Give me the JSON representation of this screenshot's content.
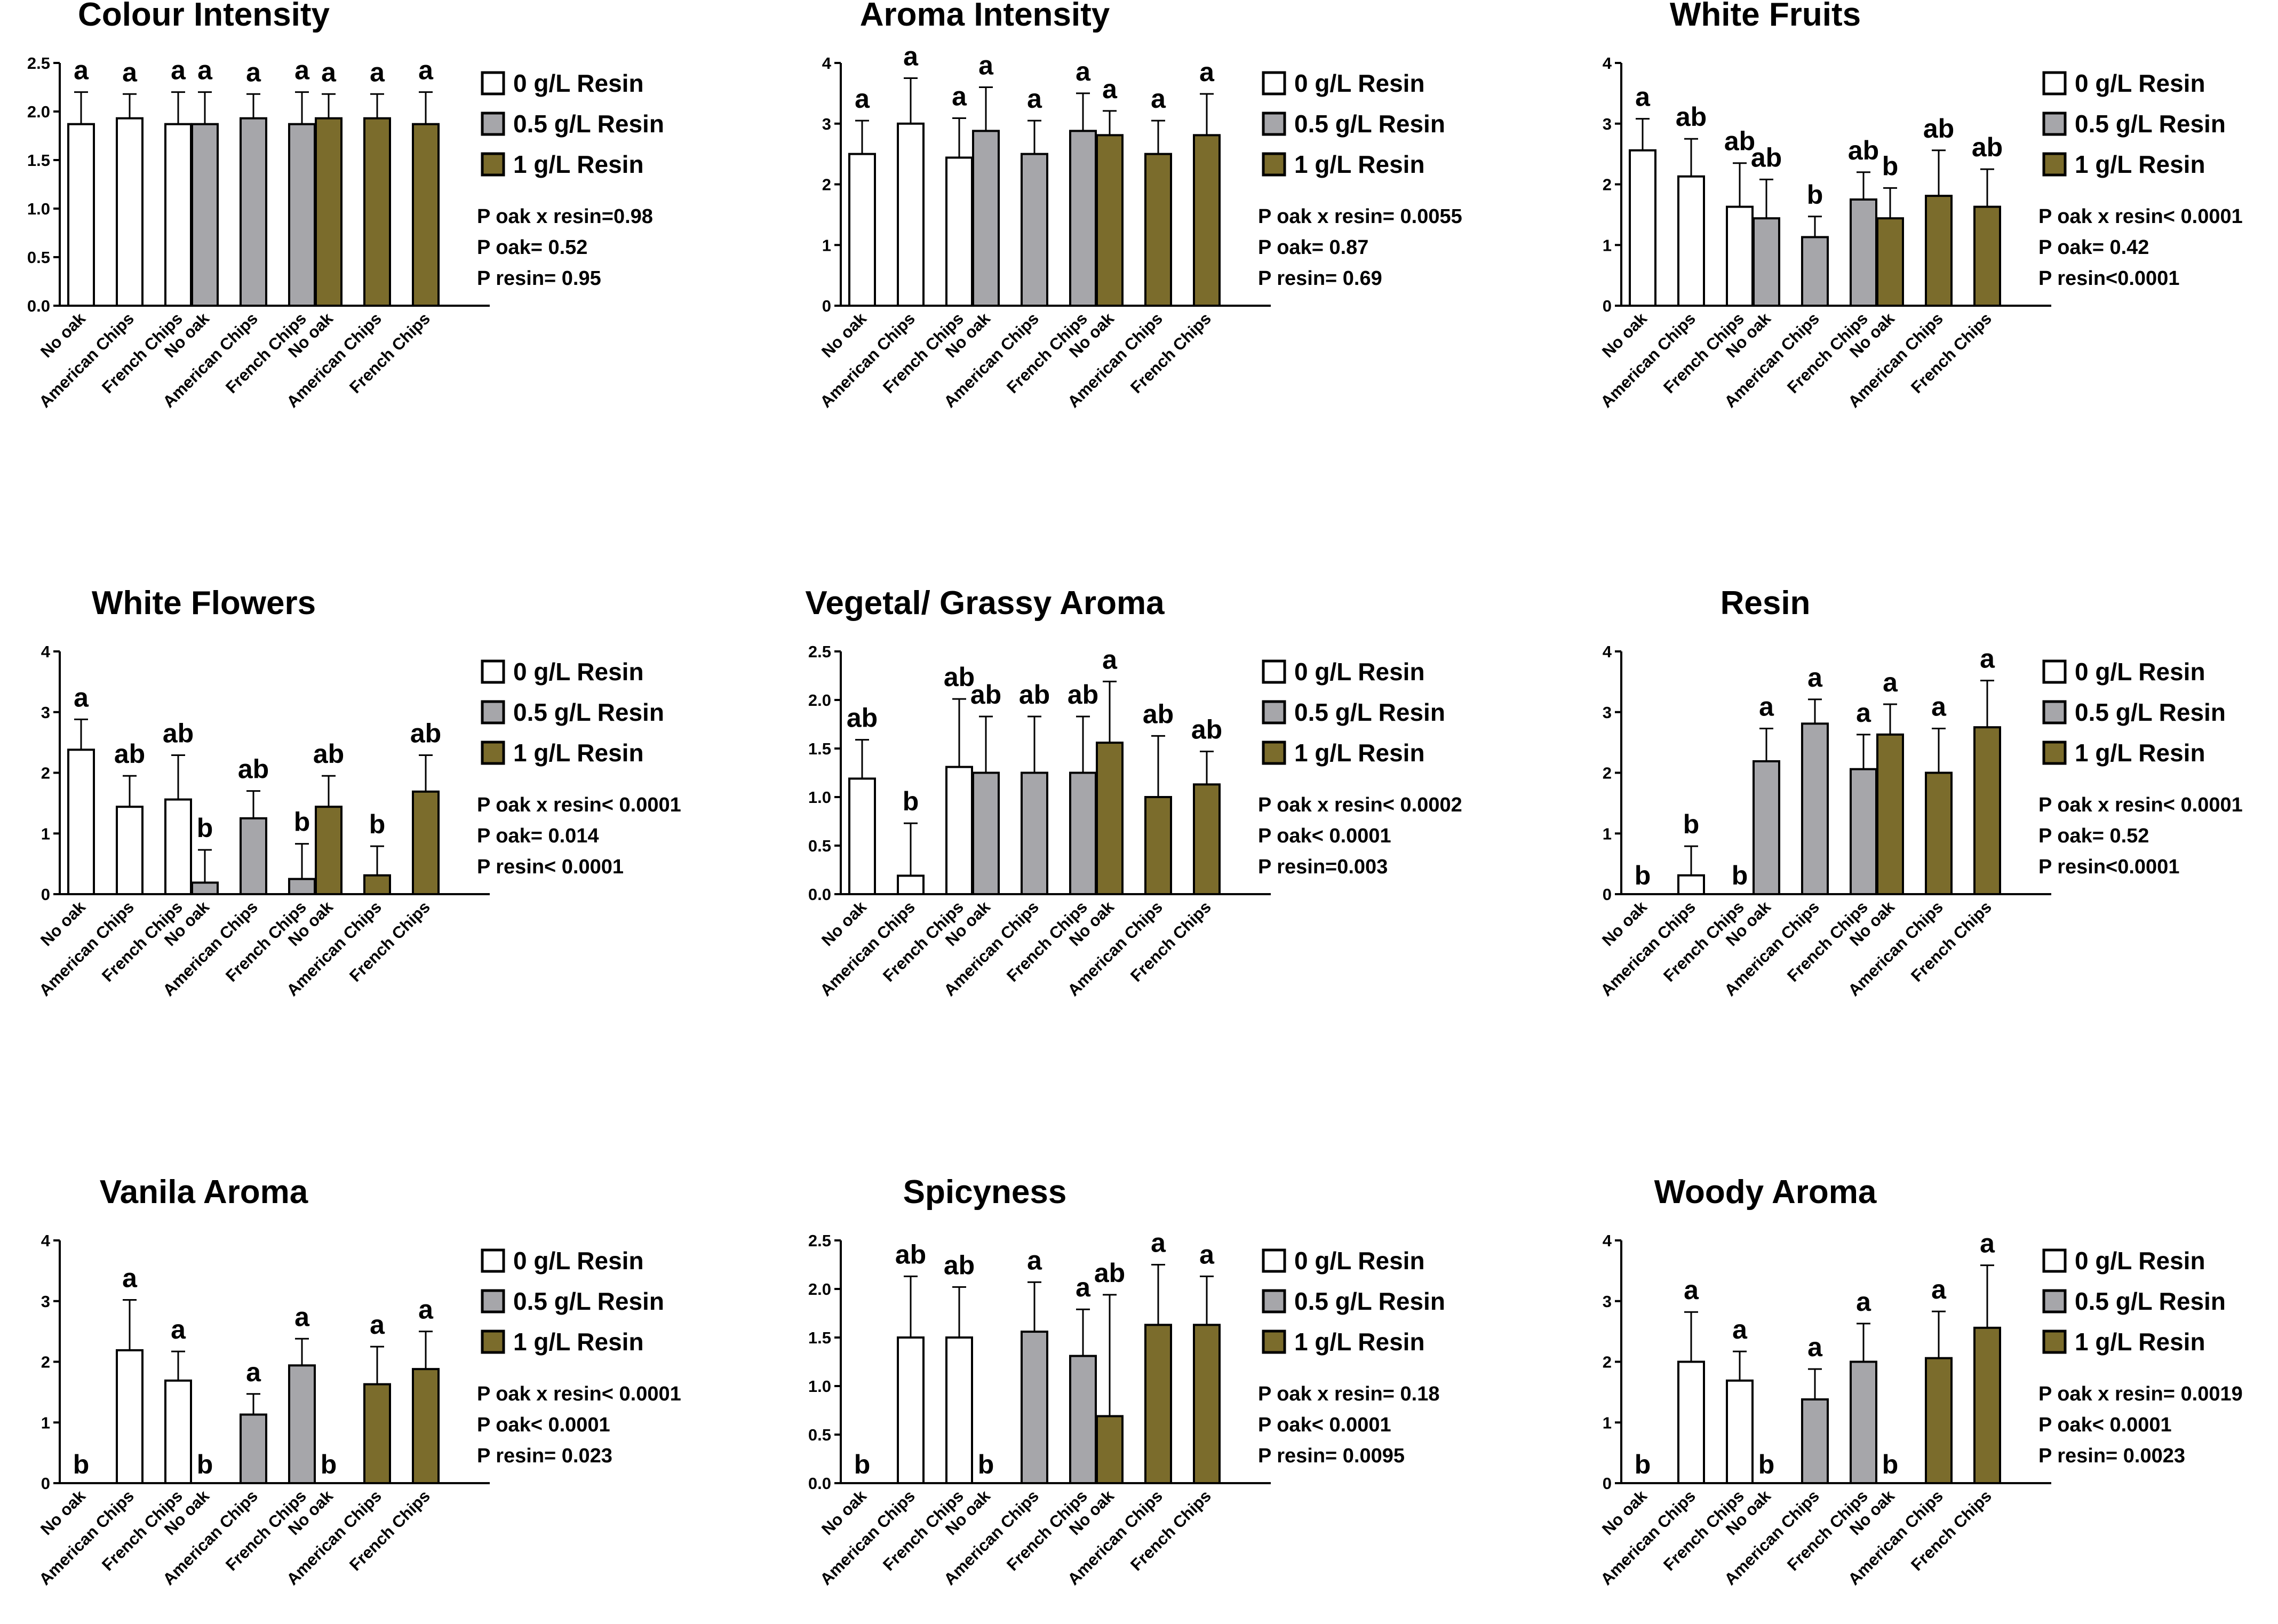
{
  "colors": {
    "resin_0": "#ffffff",
    "resin_05": "#a6a6aa",
    "resin_1": "#7b6c2c",
    "ink": "#000000"
  },
  "legend": [
    "0 g/L Resin",
    "0.5 g/L Resin",
    "1 g/L Resin"
  ],
  "oak_labels": [
    "No oak",
    "American Chips",
    "French Chips"
  ],
  "chart_data": [
    {
      "type": "bar",
      "title": "Colour Intensity",
      "ylim": [
        0,
        2.5
      ],
      "yticks": [
        "0.0",
        "0.5",
        "1.0",
        "1.5",
        "2.0",
        "2.5"
      ],
      "categories": [
        "No oak",
        "American Chips",
        "French Chips"
      ],
      "series": [
        {
          "name": "0 g/L Resin",
          "values": [
            1.87,
            1.93,
            1.87
          ],
          "errors": [
            0.33,
            0.25,
            0.33
          ],
          "letters": [
            "a",
            "a",
            "a"
          ]
        },
        {
          "name": "0.5 g/L Resin",
          "values": [
            1.87,
            1.93,
            1.87
          ],
          "errors": [
            0.33,
            0.25,
            0.33
          ],
          "letters": [
            "a",
            "a",
            "a"
          ]
        },
        {
          "name": "1 g/L Resin",
          "values": [
            1.93,
            1.93,
            1.87
          ],
          "errors": [
            0.25,
            0.25,
            0.33
          ],
          "letters": [
            "a",
            "a",
            "a"
          ]
        }
      ],
      "stats": [
        "P oak x resin=0.98",
        "P oak= 0.52",
        "P resin= 0.95"
      ]
    },
    {
      "type": "bar",
      "title": "Aroma Intensity",
      "ylim": [
        0,
        4
      ],
      "yticks": [
        "0",
        "1",
        "2",
        "3",
        "4"
      ],
      "categories": [
        "No oak",
        "American Chips",
        "French Chips"
      ],
      "series": [
        {
          "name": "0 g/L Resin",
          "values": [
            2.5,
            3.0,
            2.44
          ],
          "errors": [
            0.55,
            0.75,
            0.65
          ],
          "letters": [
            "a",
            "a",
            "a"
          ]
        },
        {
          "name": "0.5 g/L Resin",
          "values": [
            2.88,
            2.5,
            2.88
          ],
          "errors": [
            0.72,
            0.55,
            0.62
          ],
          "letters": [
            "a",
            "a",
            "a"
          ]
        },
        {
          "name": "1 g/L Resin",
          "values": [
            2.81,
            2.5,
            2.81
          ],
          "errors": [
            0.4,
            0.55,
            0.68
          ],
          "letters": [
            "a",
            "a",
            "a"
          ]
        }
      ],
      "stats": [
        "P oak x resin= 0.0055",
        "P oak= 0.87",
        "P resin= 0.69"
      ]
    },
    {
      "type": "bar",
      "title": "White Fruits",
      "ylim": [
        0,
        4
      ],
      "yticks": [
        "0",
        "1",
        "2",
        "3",
        "4"
      ],
      "categories": [
        "No oak",
        "American Chips",
        "French Chips"
      ],
      "series": [
        {
          "name": "0 g/L Resin",
          "values": [
            2.56,
            2.13,
            1.63
          ],
          "errors": [
            0.52,
            0.62,
            0.72
          ],
          "letters": [
            "a",
            "ab",
            "ab"
          ]
        },
        {
          "name": "0.5 g/L Resin",
          "values": [
            1.44,
            1.13,
            1.75
          ],
          "errors": [
            0.64,
            0.34,
            0.45
          ],
          "letters": [
            "ab",
            "b",
            "ab"
          ]
        },
        {
          "name": "1 g/L Resin",
          "values": [
            1.44,
            1.81,
            1.63
          ],
          "errors": [
            0.5,
            0.75,
            0.62
          ],
          "letters": [
            "b",
            "ab",
            "ab"
          ]
        }
      ],
      "stats": [
        "P oak x resin< 0.0001",
        "P oak= 0.42",
        "P resin<0.0001"
      ]
    },
    {
      "type": "bar",
      "title": "White Flowers",
      "ylim": [
        0,
        4
      ],
      "yticks": [
        "0",
        "1",
        "2",
        "3",
        "4"
      ],
      "categories": [
        "No oak",
        "American Chips",
        "French Chips"
      ],
      "series": [
        {
          "name": "0 g/L Resin",
          "values": [
            2.38,
            1.44,
            1.56
          ],
          "errors": [
            0.5,
            0.51,
            0.73
          ],
          "letters": [
            "a",
            "ab",
            "ab"
          ]
        },
        {
          "name": "0.5 g/L Resin",
          "values": [
            0.19,
            1.25,
            0.25
          ],
          "errors": [
            0.54,
            0.45,
            0.58
          ],
          "letters": [
            "b",
            "ab",
            "b"
          ]
        },
        {
          "name": "1 g/L Resin",
          "values": [
            1.44,
            0.31,
            1.69
          ],
          "errors": [
            0.51,
            0.48,
            0.6
          ],
          "letters": [
            "ab",
            "b",
            "ab"
          ]
        }
      ],
      "stats": [
        "P oak x resin< 0.0001",
        "P oak=  0.014",
        "P resin< 0.0001"
      ]
    },
    {
      "type": "bar",
      "title": "Vegetal/ Grassy Aroma",
      "ylim": [
        0,
        2.5
      ],
      "yticks": [
        "0.0",
        "0.5",
        "1.0",
        "1.5",
        "2.0",
        "2.5"
      ],
      "categories": [
        "No oak",
        "American Chips",
        "French Chips"
      ],
      "series": [
        {
          "name": "0 g/L Resin",
          "values": [
            1.19,
            0.19,
            1.31
          ],
          "errors": [
            0.4,
            0.54,
            0.7
          ],
          "letters": [
            "ab",
            "b",
            "ab"
          ]
        },
        {
          "name": "0.5 g/L Resin",
          "values": [
            1.25,
            1.25,
            1.25
          ],
          "errors": [
            0.58,
            0.58,
            0.58
          ],
          "letters": [
            "ab",
            "ab",
            "ab"
          ]
        },
        {
          "name": "1 g/L Resin",
          "values": [
            1.56,
            1.0,
            1.13
          ],
          "errors": [
            0.63,
            0.63,
            0.34
          ],
          "letters": [
            "a",
            "ab",
            "ab"
          ]
        }
      ],
      "stats": [
        "P oak x resin< 0.0002",
        "P oak< 0.0001",
        "P resin=0.003"
      ]
    },
    {
      "type": "bar",
      "title": "Resin",
      "ylim": [
        0,
        4
      ],
      "yticks": [
        "0",
        "1",
        "2",
        "3",
        "4"
      ],
      "categories": [
        "No oak",
        "American Chips",
        "French Chips"
      ],
      "series": [
        {
          "name": "0 g/L Resin",
          "values": [
            0,
            0.31,
            0
          ],
          "errors": [
            0,
            0.48,
            0
          ],
          "letters": [
            "b",
            "b",
            "b"
          ]
        },
        {
          "name": "0.5 g/L Resin",
          "values": [
            2.19,
            2.81,
            2.06
          ],
          "errors": [
            0.54,
            0.4,
            0.57
          ],
          "letters": [
            "a",
            "a",
            "a"
          ]
        },
        {
          "name": "1 g/L Resin",
          "values": [
            2.63,
            2.0,
            2.75
          ],
          "errors": [
            0.5,
            0.73,
            0.77
          ],
          "letters": [
            "a",
            "a",
            "a"
          ]
        }
      ],
      "stats": [
        "P oak x resin< 0.0001",
        "P oak=  0.52",
        "P resin<0.0001"
      ]
    },
    {
      "type": "bar",
      "title": "Vanila Aroma",
      "ylim": [
        0,
        4
      ],
      "yticks": [
        "0",
        "1",
        "2",
        "3",
        "4"
      ],
      "categories": [
        "No oak",
        "American Chips",
        "French Chips"
      ],
      "series": [
        {
          "name": "0 g/L Resin",
          "values": [
            0,
            2.19,
            1.69
          ],
          "errors": [
            0,
            0.83,
            0.48
          ],
          "letters": [
            "b",
            "a",
            "a"
          ]
        },
        {
          "name": "0.5 g/L Resin",
          "values": [
            0,
            1.13,
            1.94
          ],
          "errors": [
            0,
            0.34,
            0.44
          ],
          "letters": [
            "b",
            "a",
            "a"
          ]
        },
        {
          "name": "1 g/L Resin",
          "values": [
            0,
            1.63,
            1.88
          ],
          "errors": [
            0,
            0.62,
            0.62
          ],
          "letters": [
            "b",
            "a",
            "a"
          ]
        }
      ],
      "stats": [
        "P oak x resin< 0.0001",
        "P oak< 0.0001",
        "P resin= 0.023"
      ]
    },
    {
      "type": "bar",
      "title": "Spicyness",
      "ylim": [
        0,
        2.5
      ],
      "yticks": [
        "0.0",
        "0.5",
        "1.0",
        "1.5",
        "2.0",
        "2.5"
      ],
      "categories": [
        "No oak",
        "American Chips",
        "French Chips"
      ],
      "series": [
        {
          "name": "0 g/L Resin",
          "values": [
            0,
            1.5,
            1.5
          ],
          "errors": [
            0,
            0.63,
            0.52
          ],
          "letters": [
            "b",
            "ab",
            "ab"
          ]
        },
        {
          "name": "0.5 g/L Resin",
          "values": [
            0,
            1.56,
            1.31
          ],
          "errors": [
            0,
            0.51,
            0.48
          ],
          "letters": [
            "b",
            "a",
            "a"
          ]
        },
        {
          "name": "1 g/L Resin",
          "values": [
            0.69,
            1.63,
            1.63
          ],
          "errors": [
            1.25,
            0.62,
            0.5
          ],
          "letters": [
            "ab",
            "a",
            "a"
          ]
        }
      ],
      "stats": [
        "P oak x resin= 0.18",
        "P oak< 0.0001",
        "P resin= 0.0095"
      ]
    },
    {
      "type": "bar",
      "title": "Woody Aroma",
      "ylim": [
        0,
        4
      ],
      "yticks": [
        "0",
        "1",
        "2",
        "3",
        "4"
      ],
      "categories": [
        "No oak",
        "American Chips",
        "French Chips"
      ],
      "series": [
        {
          "name": "0 g/L Resin",
          "values": [
            0,
            2.0,
            1.69
          ],
          "errors": [
            0,
            0.82,
            0.48
          ],
          "letters": [
            "b",
            "a",
            "a"
          ]
        },
        {
          "name": "0.5 g/L Resin",
          "values": [
            0,
            1.38,
            2.0
          ],
          "errors": [
            0,
            0.5,
            0.63
          ],
          "letters": [
            "b",
            "a",
            "a"
          ]
        },
        {
          "name": "1 g/L Resin",
          "values": [
            0,
            2.06,
            2.56
          ],
          "errors": [
            0,
            0.77,
            1.03
          ],
          "letters": [
            "b",
            "a",
            "a"
          ]
        }
      ],
      "stats": [
        "P oak x resin= 0.0019",
        "P oak<  0.0001",
        "P resin= 0.0023"
      ]
    }
  ]
}
